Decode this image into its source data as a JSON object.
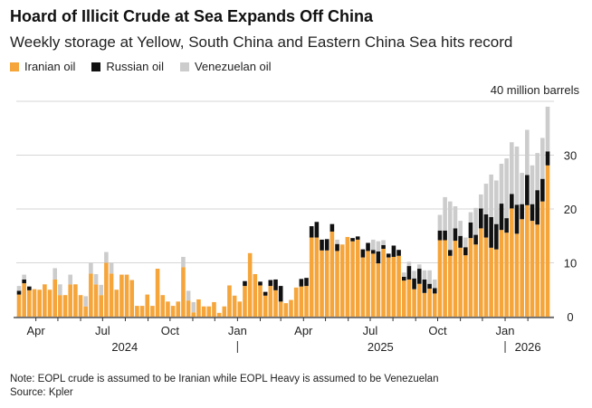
{
  "chart_data": {
    "type": "bar",
    "stacked": true,
    "title": "Hoard of Illicit Crude at Sea Expands Off China",
    "subtitle": "Weekly storage at Yellow, South China and Eastern China Sea hits record",
    "ylabel": "40 million barrels",
    "ylim": [
      0,
      40
    ],
    "yticks": [
      0,
      10,
      20,
      30
    ],
    "grid": true,
    "legend_position": "top-left",
    "x_tick_labels": [
      {
        "label": "Apr",
        "date": "2024-04-01"
      },
      {
        "label": "Jul",
        "date": "2024-07-01"
      },
      {
        "label": "Oct",
        "date": "2024-10-01"
      },
      {
        "label": "Jan",
        "date": "2025-01-01"
      },
      {
        "label": "Apr",
        "date": "2025-04-01"
      },
      {
        "label": "Jul",
        "date": "2025-07-01"
      },
      {
        "label": "Oct",
        "date": "2025-10-01"
      },
      {
        "label": "Jan",
        "date": "2026-01-01"
      }
    ],
    "year_labels": [
      {
        "label": "2024",
        "date": "2024-08-15"
      },
      {
        "label": "2025",
        "date": "2025-07-15"
      },
      {
        "label": "2026",
        "date": "2026-02-01"
      }
    ],
    "categories": [
      "2024-03-09",
      "2024-03-16",
      "2024-03-23",
      "2024-03-30",
      "2024-04-06",
      "2024-04-13",
      "2024-04-20",
      "2024-04-27",
      "2024-05-04",
      "2024-05-11",
      "2024-05-18",
      "2024-05-25",
      "2024-06-01",
      "2024-06-08",
      "2024-06-15",
      "2024-06-22",
      "2024-06-29",
      "2024-07-06",
      "2024-07-13",
      "2024-07-20",
      "2024-07-27",
      "2024-08-03",
      "2024-08-10",
      "2024-08-17",
      "2024-08-24",
      "2024-08-31",
      "2024-09-07",
      "2024-09-14",
      "2024-09-21",
      "2024-09-28",
      "2024-10-05",
      "2024-10-12",
      "2024-10-19",
      "2024-10-26",
      "2024-11-02",
      "2024-11-09",
      "2024-11-16",
      "2024-11-23",
      "2024-11-30",
      "2024-12-07",
      "2024-12-14",
      "2024-12-21",
      "2024-12-28",
      "2025-01-04",
      "2025-01-11",
      "2025-01-18",
      "2025-01-25",
      "2025-02-01",
      "2025-02-08",
      "2025-02-15",
      "2025-02-22",
      "2025-03-01",
      "2025-03-08",
      "2025-03-15",
      "2025-03-22",
      "2025-03-29",
      "2025-04-05",
      "2025-04-12",
      "2025-04-19",
      "2025-04-26",
      "2025-05-03",
      "2025-05-10",
      "2025-05-17",
      "2025-05-24",
      "2025-05-31",
      "2025-06-07",
      "2025-06-14",
      "2025-06-21",
      "2025-06-28",
      "2025-07-05",
      "2025-07-12",
      "2025-07-19",
      "2025-07-26",
      "2025-08-02",
      "2025-08-09",
      "2025-08-16",
      "2025-08-23",
      "2025-08-30",
      "2025-09-06",
      "2025-09-13",
      "2025-09-20",
      "2025-09-27",
      "2025-10-04",
      "2025-10-11",
      "2025-10-18",
      "2025-10-25",
      "2025-11-01",
      "2025-11-08",
      "2025-11-15",
      "2025-11-22",
      "2025-11-29",
      "2025-12-06",
      "2025-12-13",
      "2025-12-20",
      "2025-12-27",
      "2026-01-03",
      "2026-01-10",
      "2026-01-17",
      "2026-01-24",
      "2026-01-31",
      "2026-02-07",
      "2026-02-14",
      "2026-02-21",
      "2026-02-28"
    ],
    "series": [
      {
        "name": "Iranian oil",
        "color": "#f5a53a",
        "values": [
          4.1,
          6.2,
          4.9,
          5.1,
          5.0,
          6.0,
          5.0,
          6.9,
          4.0,
          4.0,
          6.0,
          6.0,
          4.0,
          1.9,
          8.0,
          6.0,
          4.0,
          10.0,
          8.0,
          5.0,
          7.8,
          7.8,
          6.8,
          2.0,
          2.0,
          4.1,
          2.0,
          8.9,
          4.0,
          2.8,
          2.0,
          2.8,
          9.2,
          3.0,
          0.8,
          3.2,
          1.9,
          1.9,
          2.7,
          0.7,
          1.9,
          5.8,
          3.9,
          2.8,
          5.7,
          11.8,
          7.9,
          5.8,
          3.9,
          5.7,
          4.9,
          2.8,
          2.5,
          3.1,
          5.4,
          5.6,
          5.7,
          14.7,
          14.7,
          12.3,
          12.3,
          15.8,
          12.2,
          13.4,
          14.8,
          14.0,
          14.3,
          11.0,
          12.2,
          11.7,
          9.9,
          12.6,
          11.0,
          11.1,
          11.3,
          6.7,
          6.9,
          5.1,
          6.1,
          4.4,
          5.2,
          4.3,
          14.2,
          14.2,
          11.3,
          14.1,
          12.8,
          11.4,
          14.6,
          13.4,
          16.4,
          14.7,
          12.8,
          12.5,
          16.1,
          15.6,
          20.1,
          15.4,
          18.1,
          20.7,
          17.8,
          17.1,
          21.4,
          28.1
        ]
      },
      {
        "name": "Russian oil",
        "color": "#111111",
        "values": [
          0.7,
          0.7,
          0.7,
          0,
          0,
          0,
          0,
          0,
          0,
          0,
          0,
          0,
          0,
          0,
          0,
          0,
          0,
          0,
          0,
          0,
          0,
          0,
          0,
          0,
          0,
          0,
          0,
          0,
          0,
          0,
          0,
          0,
          0,
          0,
          0,
          0,
          0,
          0,
          0,
          0,
          0,
          0,
          0,
          0,
          0.9,
          0,
          0,
          0.7,
          0.7,
          1.1,
          2.0,
          2.9,
          0,
          0,
          0,
          1.4,
          1.5,
          2.1,
          2.9,
          2.0,
          2.1,
          1.4,
          1.3,
          0,
          0,
          0.6,
          0.6,
          1.5,
          1.5,
          0.7,
          2.2,
          0.7,
          0.7,
          2.1,
          1.1,
          0.7,
          2.5,
          2.0,
          2.8,
          2.5,
          0.9,
          1.0,
          1.8,
          1.8,
          1.1,
          2.3,
          2.2,
          1.5,
          2.9,
          1.8,
          3.7,
          4.3,
          5.7,
          4.7,
          4.9,
          2.7,
          2.7,
          5.4,
          2.8,
          5.6,
          3.1,
          6.4,
          4.2,
          2.6
        ]
      },
      {
        "name": "Venezuelan oil",
        "color": "#cccccc",
        "values": [
          0.9,
          0.9,
          0,
          0,
          0,
          0,
          0,
          2.1,
          2.0,
          0,
          1.8,
          0,
          0,
          1.9,
          2.0,
          1.9,
          1.9,
          2.0,
          2.0,
          0,
          0,
          0,
          0,
          0,
          0,
          0,
          0,
          0,
          0,
          0,
          0,
          0,
          1.9,
          1.8,
          1.9,
          0,
          0,
          0,
          0,
          0,
          0,
          0,
          0,
          0,
          0,
          0,
          0,
          0,
          0,
          0,
          0,
          0,
          0,
          0,
          0,
          0,
          0,
          0,
          0,
          0,
          0,
          0,
          0.8,
          0,
          0,
          0,
          0,
          0,
          0,
          1.9,
          1.9,
          0.9,
          0,
          0,
          0,
          0.8,
          0.8,
          1.4,
          0.8,
          1.7,
          2.5,
          1.6,
          2.9,
          6.2,
          9.0,
          4.1,
          2.8,
          1.8,
          1.9,
          5.0,
          2.6,
          5.7,
          7.9,
          8.1,
          7.4,
          11.1,
          9.6,
          10.8,
          5.8,
          8.4,
          7.2,
          6.9,
          7.6,
          8.3
        ]
      }
    ]
  },
  "notes": {
    "note": "Note: EOPL crude is assumed to be Iranian while EOPL Heavy is assumed to be Venezuelan",
    "source": "Source: Kpler"
  }
}
